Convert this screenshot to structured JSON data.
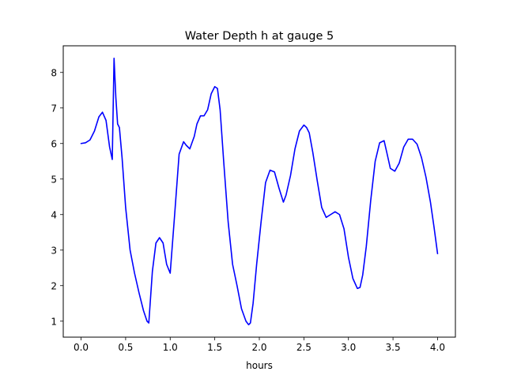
{
  "chart_data": {
    "type": "line",
    "title": "Water Depth h at gauge 5",
    "xlabel": "hours",
    "ylabel": "",
    "xlim": [
      -0.2,
      4.2
    ],
    "ylim": [
      0.55,
      8.75
    ],
    "xticks": [
      0.0,
      0.5,
      1.0,
      1.5,
      2.0,
      2.5,
      3.0,
      3.5,
      4.0
    ],
    "xtick_labels": [
      "0.0",
      "0.5",
      "1.0",
      "1.5",
      "2.0",
      "2.5",
      "3.0",
      "3.5",
      "4.0"
    ],
    "yticks": [
      1,
      2,
      3,
      4,
      5,
      6,
      7,
      8
    ],
    "ytick_labels": [
      "1",
      "2",
      "3",
      "4",
      "5",
      "6",
      "7",
      "8"
    ],
    "grid": false,
    "legend": "none",
    "series": [
      {
        "color": "#0000ff",
        "x": [
          0.0,
          0.05,
          0.1,
          0.15,
          0.2,
          0.24,
          0.28,
          0.32,
          0.35,
          0.37,
          0.39,
          0.41,
          0.43,
          0.46,
          0.5,
          0.55,
          0.6,
          0.65,
          0.7,
          0.74,
          0.76,
          0.8,
          0.84,
          0.88,
          0.92,
          0.96,
          1.0,
          1.05,
          1.1,
          1.15,
          1.18,
          1.22,
          1.27,
          1.3,
          1.34,
          1.38,
          1.42,
          1.46,
          1.5,
          1.53,
          1.56,
          1.6,
          1.65,
          1.7,
          1.75,
          1.8,
          1.85,
          1.88,
          1.9,
          1.93,
          1.97,
          2.02,
          2.07,
          2.12,
          2.17,
          2.22,
          2.27,
          2.3,
          2.35,
          2.4,
          2.45,
          2.5,
          2.53,
          2.56,
          2.6,
          2.65,
          2.7,
          2.75,
          2.8,
          2.85,
          2.9,
          2.95,
          3.0,
          3.05,
          3.1,
          3.13,
          3.16,
          3.2,
          3.25,
          3.3,
          3.35,
          3.4,
          3.43,
          3.47,
          3.52,
          3.57,
          3.62,
          3.67,
          3.72,
          3.77,
          3.82,
          3.87,
          3.92,
          3.96,
          4.0
        ],
        "y": [
          6.0,
          6.02,
          6.1,
          6.35,
          6.75,
          6.88,
          6.65,
          5.9,
          5.55,
          8.4,
          7.3,
          6.55,
          6.45,
          5.6,
          4.2,
          3.0,
          2.35,
          1.8,
          1.3,
          1.0,
          0.95,
          2.4,
          3.2,
          3.35,
          3.2,
          2.6,
          2.35,
          4.0,
          5.7,
          6.05,
          5.95,
          5.85,
          6.2,
          6.55,
          6.78,
          6.78,
          6.95,
          7.4,
          7.6,
          7.55,
          6.95,
          5.5,
          3.8,
          2.6,
          2.0,
          1.35,
          1.0,
          0.9,
          0.95,
          1.5,
          2.6,
          3.8,
          4.9,
          5.25,
          5.2,
          4.75,
          4.35,
          4.55,
          5.1,
          5.85,
          6.35,
          6.52,
          6.45,
          6.3,
          5.75,
          4.95,
          4.2,
          3.92,
          4.0,
          4.08,
          4.0,
          3.6,
          2.8,
          2.2,
          1.92,
          1.95,
          2.3,
          3.1,
          4.4,
          5.5,
          6.02,
          6.08,
          5.75,
          5.3,
          5.22,
          5.45,
          5.9,
          6.12,
          6.12,
          5.98,
          5.6,
          5.05,
          4.35,
          3.65,
          2.9
        ]
      }
    ]
  }
}
